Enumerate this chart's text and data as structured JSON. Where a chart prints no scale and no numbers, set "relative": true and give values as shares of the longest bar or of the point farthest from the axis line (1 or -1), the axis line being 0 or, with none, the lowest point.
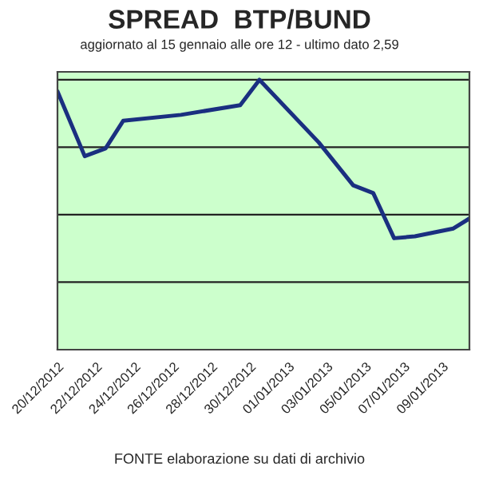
{
  "chart_data": {
    "type": "line",
    "title": "SPREAD  BTP/BUND",
    "subtitle": "aggiornato al 15 gennaio alle ore 12 - ultimo dato 2,59",
    "annotations": [
      "FONTE elaborazione su dati di archivio"
    ],
    "relative": true,
    "grid": "y",
    "legend": false,
    "marker": "none",
    "line_style": "solid",
    "series": [
      {
        "color": "#1a2f80",
        "x": [
          "2012-12-20T00:00",
          "2012-12-21T10:00",
          "2012-12-22T12:00",
          "2012-12-23T10:00",
          "2012-12-26T10:00",
          "2012-12-29T12:00",
          "2012-12-30T12:00",
          "2013-01-02T14:00",
          "2013-01-04T09:00",
          "2013-01-05T10:00",
          "2013-01-06T12:00",
          "2013-01-07T14:00",
          "2013-01-09T14:00",
          "2013-01-10T10:00"
        ],
        "values": [
          0.957,
          0.717,
          0.746,
          0.848,
          0.87,
          0.906,
          1,
          0.768,
          0.609,
          0.58,
          0.413,
          0.42,
          0.449,
          0.486
        ]
      }
    ],
    "xlim": [
      "2012-12-20T00:00",
      "2013-01-10T10:00"
    ],
    "xticks": [
      {
        "value": "2012-12-20",
        "label": "20/12/2012"
      },
      {
        "value": "2012-12-22",
        "label": "22/12/2012"
      },
      {
        "value": "2012-12-24",
        "label": "24/12/2012"
      },
      {
        "value": "2012-12-26",
        "label": "26/12/2012"
      },
      {
        "value": "2012-12-28",
        "label": "28/12/2012"
      },
      {
        "value": "2012-12-30",
        "label": "30/12/2012"
      },
      {
        "value": "2013-01-01",
        "label": "01/01/2013"
      },
      {
        "value": "2013-01-03",
        "label": "03/01/2013"
      },
      {
        "value": "2013-01-05",
        "label": "05/01/2013"
      },
      {
        "value": "2013-01-07",
        "label": "07/01/2013"
      },
      {
        "value": "2013-01-09",
        "label": "09/01/2013"
      }
    ]
  }
}
